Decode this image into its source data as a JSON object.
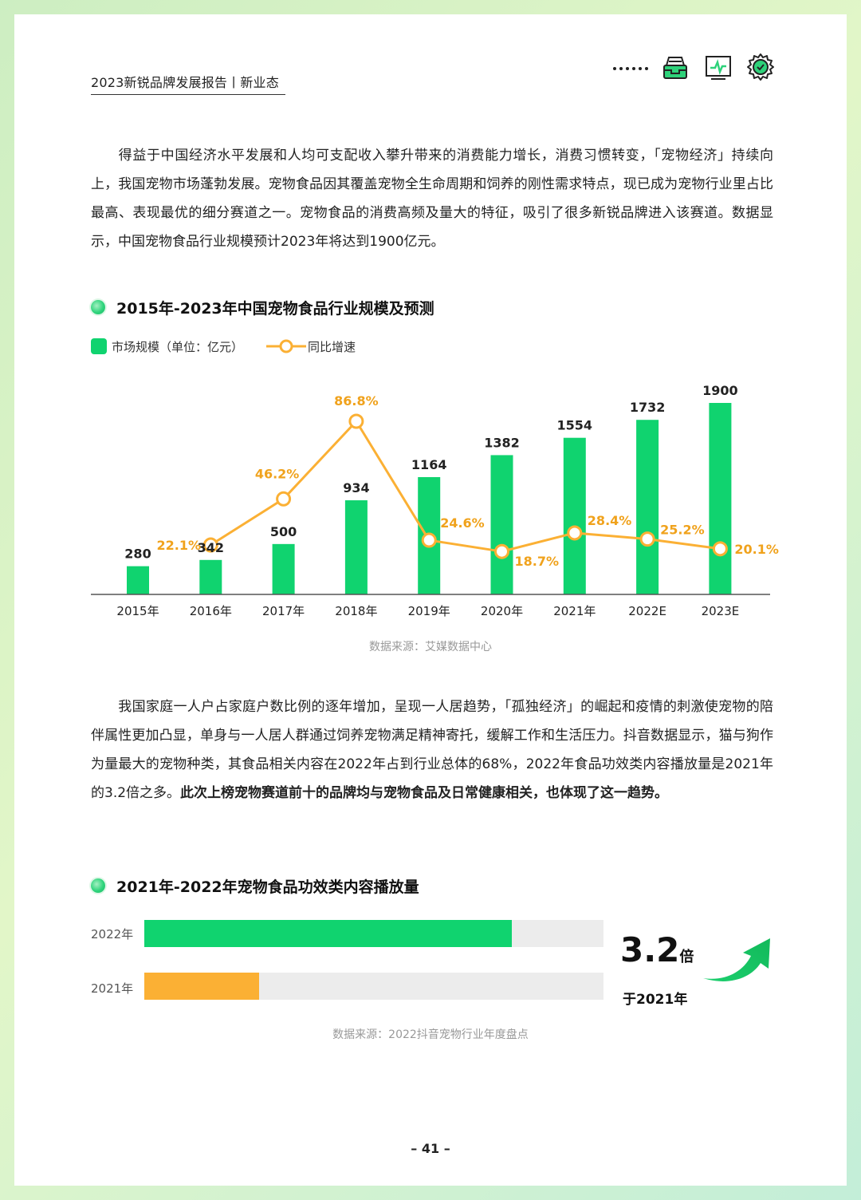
{
  "header": {
    "title": "2023新锐品牌发展报告丨新业态",
    "icons": [
      "dots-icon",
      "inbox-tray-icon",
      "monitor-chart-icon",
      "gear-check-icon"
    ]
  },
  "colors": {
    "green": "#10d36f",
    "orange": "#fbb034",
    "orange_text": "#f0a21c",
    "track": "#ececec"
  },
  "para1": {
    "text": "得益于中国经济水平发展和人均可支配收入攀升带来的消费能力增长，消费习惯转变，「宠物经济」持续向上，我国宠物市场蓬勃发展。宠物食品因其覆盖宠物全生命周期和饲养的刚性需求特点，现已成为宠物行业里占比最高、表现最优的细分赛道之一。宠物食品的消费高频及量大的特征，吸引了很多新锐品牌进入该赛道。数据显示，中国宠物食品行业规模预计2023年将达到1900亿元。"
  },
  "chart1": {
    "title": "2015年-2023年中国宠物食品行业规模及预测",
    "legend_bar": "市场规模（单位：亿元）",
    "legend_line": "同比增速",
    "source": "数据来源：艾媒数据中心"
  },
  "para2": {
    "text_normal": "我国家庭一人户占家庭户数比例的逐年增加，呈现一人居趋势，「孤独经济」的崛起和疫情的刺激使宠物的陪伴属性更加凸显，单身与一人居人群通过饲养宠物满足精神寄托，缓解工作和生活压力。抖音数据显示，猫与狗作为量最大的宠物种类，其食品相关内容在2022年占到行业总体的68%，2022年食品功效类内容播放量是2021年的3.2倍之多。",
    "text_bold": "此次上榜宠物赛道前十的品牌均与宠物食品及日常健康相关，也体现了这一趋势。"
  },
  "chart2": {
    "title": "2021年-2022年宠物食品功效类内容播放量",
    "multiplier_value": "3.2",
    "multiplier_unit": "倍",
    "multiplier_sub": "于2021年",
    "source": "数据来源：2022抖音宠物行业年度盘点"
  },
  "page_number": "– 41 –",
  "chart_data": [
    {
      "type": "bar",
      "title": "2015年-2023年中国宠物食品行业规模及预测",
      "categories": [
        "2015年",
        "2016年",
        "2017年",
        "2018年",
        "2019年",
        "2020年",
        "2021年",
        "2022E",
        "2023E"
      ],
      "series": [
        {
          "name": "市场规模（单位：亿元）",
          "type": "bar",
          "values": [
            280,
            342,
            500,
            934,
            1164,
            1382,
            1554,
            1732,
            1900
          ],
          "labels": [
            "280",
            "342",
            "500",
            "934",
            "1164",
            "1382",
            "1554",
            "1732",
            "1900"
          ]
        },
        {
          "name": "同比增速",
          "type": "line",
          "values": [
            null,
            22.1,
            46.2,
            86.8,
            24.6,
            18.7,
            28.4,
            25.2,
            20.1
          ],
          "labels": [
            "",
            "22.1%",
            "46.2%",
            "86.8%",
            "24.6%",
            "18.7%",
            "28.4%",
            "25.2%",
            "20.1%"
          ]
        }
      ],
      "ylim": [
        0,
        1900
      ],
      "y2lim": [
        0,
        86.8
      ],
      "grid": false,
      "legend_position": "top-left",
      "source": "数据来源：艾媒数据中心"
    },
    {
      "type": "bar",
      "orientation": "horizontal",
      "title": "2021年-2022年宠物食品功效类内容播放量",
      "categories": [
        "2022年",
        "2021年"
      ],
      "values": [
        3.2,
        1.0
      ],
      "xlim": [
        0,
        4.0
      ],
      "annotation": "3.2倍 于2021年",
      "source": "数据来源：2022抖音宠物行业年度盘点"
    }
  ]
}
